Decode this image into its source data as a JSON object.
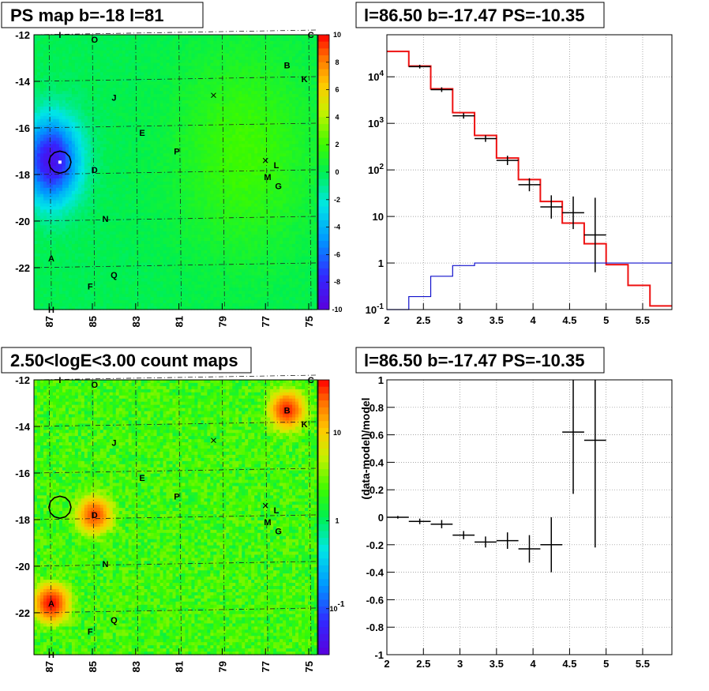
{
  "panels": {
    "ps_map": {
      "title": "PS map b=-18 l=81",
      "xticks": [
        "87",
        "85",
        "83",
        "81",
        "79",
        "77",
        "75"
      ],
      "yticks": [
        "-12",
        "-14",
        "-16",
        "-18",
        "-20",
        "-22"
      ],
      "colorbar_ticks": [
        "10",
        "8",
        "6",
        "4",
        "2",
        "0",
        "-2",
        "-4",
        "-6",
        "-8",
        "-10"
      ]
    },
    "spectrum": {
      "title": "l=86.50 b=-17.47 PS=-10.35",
      "xticks": [
        "2",
        "2.5",
        "3",
        "3.5",
        "4",
        "4.5",
        "5",
        "5.5"
      ],
      "yticks": [
        "10^4",
        "10^3",
        "10^2",
        "10",
        "1",
        "10^-1"
      ]
    },
    "count_map": {
      "title": "2.50<logE<3.00 count maps",
      "xticks": [
        "87",
        "85",
        "83",
        "81",
        "79",
        "77",
        "75"
      ],
      "yticks": [
        "-12",
        "-14",
        "-16",
        "-18",
        "-20",
        "-22"
      ],
      "colorbar_ticks": [
        "10",
        "1",
        "10^-1"
      ]
    },
    "residual": {
      "title": "l=86.50 b=-17.47 PS=-10.35",
      "ylabel": "(data-model)/model",
      "xticks": [
        "2",
        "2.5",
        "3",
        "3.5",
        "4",
        "4.5",
        "5",
        "5.5"
      ],
      "yticks": [
        "1",
        "0.8",
        "0.6",
        "0.4",
        "0.2",
        "0",
        "-0.2",
        "-0.4",
        "-0.6",
        "-0.8",
        "-1"
      ]
    }
  },
  "sources": [
    {
      "label": "I",
      "l": 86.5,
      "b": -12.0
    },
    {
      "label": "O",
      "l": 84.9,
      "b": -12.2
    },
    {
      "label": "C",
      "l": 74.9,
      "b": -12.0
    },
    {
      "label": "B",
      "l": 76.0,
      "b": -13.3
    },
    {
      "label": "K",
      "l": 75.2,
      "b": -13.9
    },
    {
      "label": "J",
      "l": 84.0,
      "b": -14.7
    },
    {
      "label": "E",
      "l": 82.7,
      "b": -16.2
    },
    {
      "label": "P",
      "l": 81.1,
      "b": -17.0
    },
    {
      "label": "D",
      "l": 84.9,
      "b": -17.8
    },
    {
      "label": "L",
      "l": 76.5,
      "b": -17.6
    },
    {
      "label": "M",
      "l": 76.9,
      "b": -18.1
    },
    {
      "label": "G",
      "l": 76.4,
      "b": -18.5
    },
    {
      "label": "N",
      "l": 84.4,
      "b": -19.9
    },
    {
      "label": "A",
      "l": 86.9,
      "b": -21.6
    },
    {
      "label": "Q",
      "l": 84.0,
      "b": -22.3
    },
    {
      "label": "F",
      "l": 85.1,
      "b": -22.8
    },
    {
      "label": "H",
      "l": 86.9,
      "b": -23.8
    }
  ],
  "markers": [
    {
      "l": 79.4,
      "b": -14.6
    },
    {
      "l": 77.0,
      "b": -17.4
    }
  ],
  "target": {
    "l": 86.5,
    "b": -17.47
  },
  "chart_data": [
    {
      "type": "heatmap",
      "title": "PS map b=-18 l=81",
      "xlim": [
        87.7,
        74.6
      ],
      "ylim": [
        -23.8,
        -12.0
      ],
      "zlim": [
        -10,
        10
      ],
      "colorbar_ticks": [
        -10,
        -8,
        -6,
        -4,
        -2,
        0,
        2,
        4,
        6,
        8,
        10
      ],
      "features": [
        {
          "kind": "negative_blob",
          "l": 86.9,
          "b": -17.4,
          "value": -9
        },
        {
          "kind": "positive_area",
          "l": 78.0,
          "b": -17.0,
          "value": 2
        }
      ]
    },
    {
      "type": "line",
      "title": "l=86.50 b=-17.47 PS=-10.35",
      "xlim": [
        2.0,
        5.9
      ],
      "ylim": [
        0.1,
        80000
      ],
      "log_y": true,
      "grid": true,
      "series": [
        {
          "edges": [
            2.0,
            2.3,
            2.6,
            2.9,
            3.2,
            3.5,
            3.8,
            4.1,
            4.4,
            4.7,
            5.0,
            5.3,
            5.6,
            5.9
          ],
          "values": [
            35000,
            17000,
            5500,
            1700,
            550,
            180,
            62,
            21,
            7.2,
            2.6,
            0.92,
            0.33,
            0.12
          ],
          "color": "#ee1111"
        },
        {
          "edges": [
            2.0,
            2.3,
            2.6,
            2.9,
            3.2,
            3.5,
            3.8,
            4.1,
            4.4,
            4.7,
            5.0,
            5.3,
            5.6,
            5.9
          ],
          "values": [
            0.09,
            0.19,
            0.52,
            0.88,
            1.0,
            1.0,
            1.0,
            1.0,
            1.0,
            1.0,
            1.0,
            1.0,
            1.0
          ],
          "color": "#1111cc"
        },
        {
          "x": [
            2.45,
            2.75,
            3.05,
            3.35,
            3.65,
            3.95,
            4.25,
            4.55,
            4.85
          ],
          "y": [
            16500,
            5300,
            1450,
            470,
            160,
            48,
            16,
            12,
            4.0
          ],
          "yerr": [
            0.04,
            0.05,
            0.06,
            0.07,
            0.1,
            0.14,
            0.25,
            0.35,
            0.8
          ],
          "color": "#000000"
        }
      ]
    },
    {
      "type": "heatmap",
      "title": "2.50<logE<3.00 count maps",
      "xlim": [
        87.7,
        74.6
      ],
      "ylim": [
        -23.8,
        -12.0
      ],
      "log_z": true,
      "colorbar_ticks": [
        10,
        1,
        0.1
      ],
      "features": [
        {
          "kind": "bright_spot",
          "label": "B",
          "l": 76.0,
          "b": -13.3,
          "value": 30
        },
        {
          "kind": "bright_spot",
          "label": "D",
          "l": 84.9,
          "b": -17.8,
          "value": 25
        },
        {
          "kind": "bright_spot",
          "label": "A",
          "l": 86.9,
          "b": -21.6,
          "value": 35
        }
      ]
    },
    {
      "type": "scatter",
      "title": "l=86.50 b=-17.47 PS=-10.35",
      "ylabel": "(data-model)/model",
      "xlim": [
        2.0,
        5.9
      ],
      "ylim": [
        -1,
        1
      ],
      "grid": true,
      "x": [
        2.15,
        2.45,
        2.75,
        3.05,
        3.35,
        3.65,
        3.95,
        4.25,
        4.55,
        4.85
      ],
      "y": [
        0.0,
        -0.03,
        -0.05,
        -0.13,
        -0.18,
        -0.17,
        -0.23,
        -0.2,
        0.62,
        0.56
      ],
      "xerr": [
        0.15,
        0.15,
        0.15,
        0.15,
        0.15,
        0.15,
        0.15,
        0.15,
        0.15,
        0.15
      ],
      "yerr": [
        0.01,
        0.02,
        0.03,
        0.03,
        0.04,
        0.06,
        0.1,
        0.2,
        0.45,
        0.78
      ]
    }
  ]
}
